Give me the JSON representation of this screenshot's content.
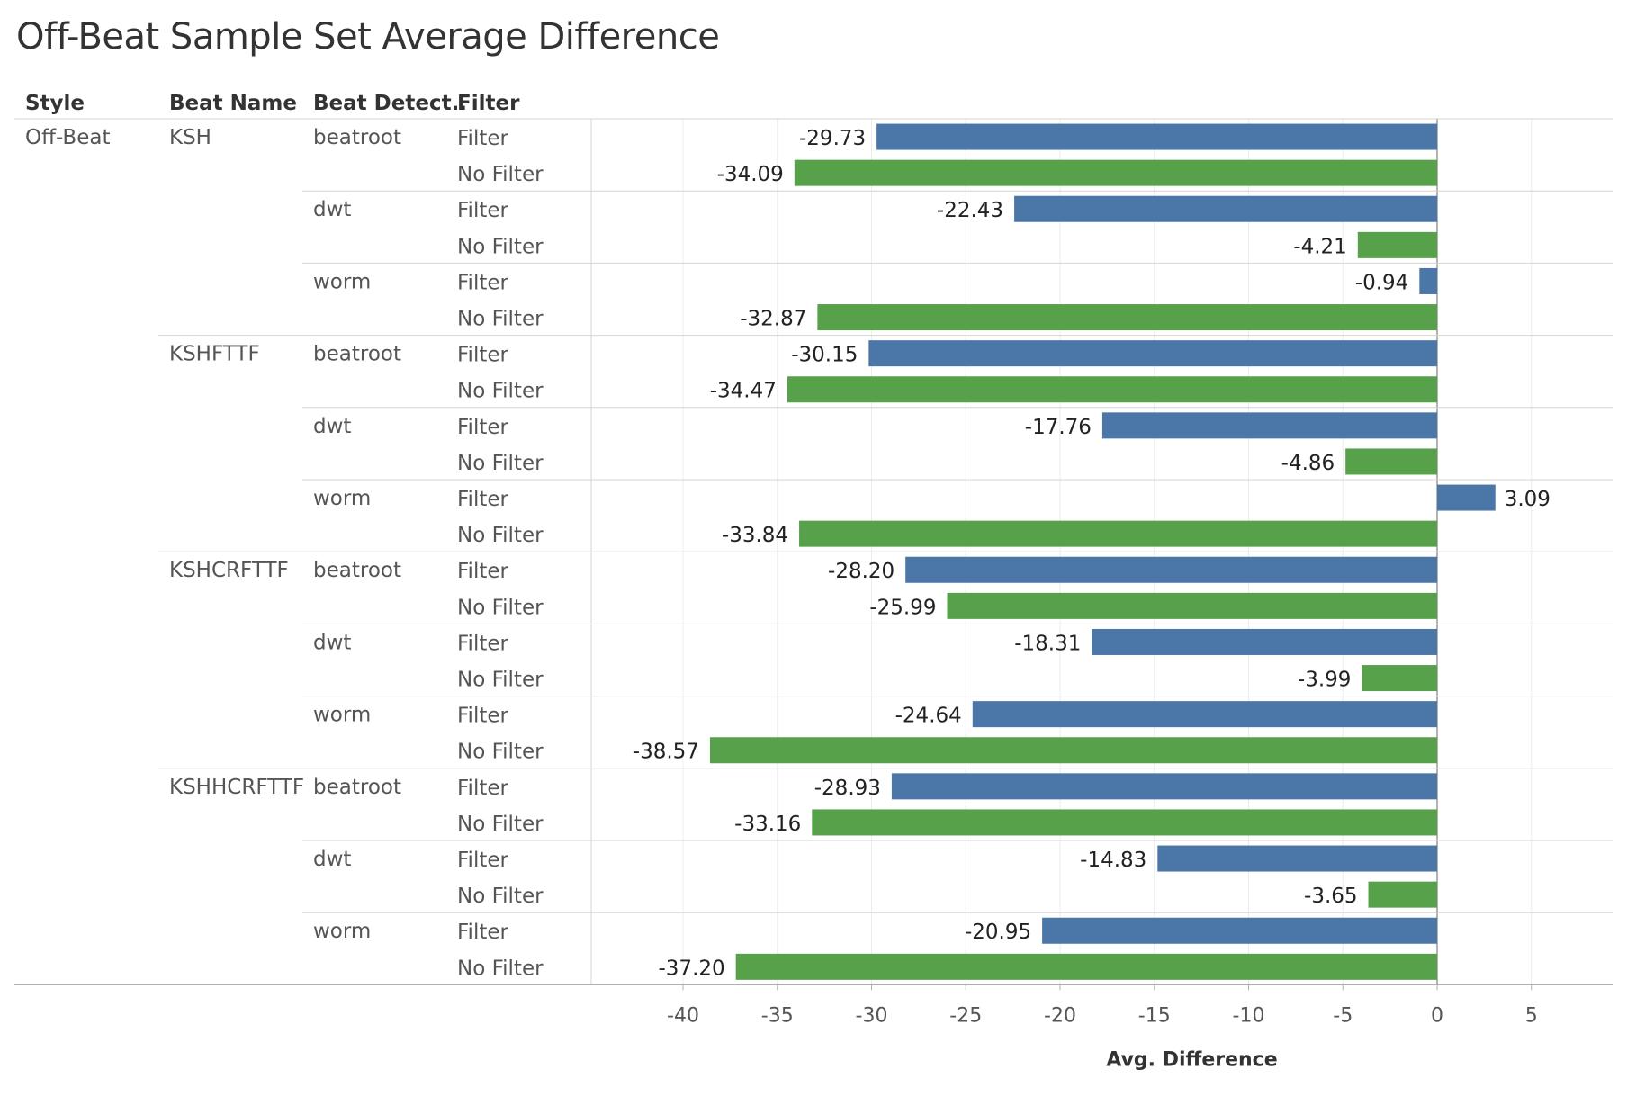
{
  "title": "Off-Beat Sample Set Average Difference",
  "columns": [
    "Style",
    "Beat Name",
    "Beat Detect..",
    "Filter"
  ],
  "colors": {
    "Filter": "#4a76a8",
    "No Filter": "#56a14a"
  },
  "chart_data": {
    "type": "bar",
    "orientation": "horizontal",
    "title": "Off-Beat Sample Set Average Difference",
    "xlabel": "Avg. Difference",
    "xlim": [
      -40,
      5
    ],
    "x_ticks": [
      -40,
      -35,
      -30,
      -25,
      -20,
      -15,
      -10,
      -5,
      0,
      5
    ],
    "grid": "vertical",
    "style": "Off-Beat",
    "rows": [
      {
        "beat": "KSH",
        "detector": "beatroot",
        "filter": "Filter",
        "value": -29.73
      },
      {
        "beat": "KSH",
        "detector": "beatroot",
        "filter": "No Filter",
        "value": -34.09
      },
      {
        "beat": "KSH",
        "detector": "dwt",
        "filter": "Filter",
        "value": -22.43
      },
      {
        "beat": "KSH",
        "detector": "dwt",
        "filter": "No Filter",
        "value": -4.21
      },
      {
        "beat": "KSH",
        "detector": "worm",
        "filter": "Filter",
        "value": -0.94
      },
      {
        "beat": "KSH",
        "detector": "worm",
        "filter": "No Filter",
        "value": -32.87
      },
      {
        "beat": "KSHFTTF",
        "detector": "beatroot",
        "filter": "Filter",
        "value": -30.15
      },
      {
        "beat": "KSHFTTF",
        "detector": "beatroot",
        "filter": "No Filter",
        "value": -34.47
      },
      {
        "beat": "KSHFTTF",
        "detector": "dwt",
        "filter": "Filter",
        "value": -17.76
      },
      {
        "beat": "KSHFTTF",
        "detector": "dwt",
        "filter": "No Filter",
        "value": -4.86
      },
      {
        "beat": "KSHFTTF",
        "detector": "worm",
        "filter": "Filter",
        "value": 3.09
      },
      {
        "beat": "KSHFTTF",
        "detector": "worm",
        "filter": "No Filter",
        "value": -33.84
      },
      {
        "beat": "KSHCRFTTF",
        "detector": "beatroot",
        "filter": "Filter",
        "value": -28.2
      },
      {
        "beat": "KSHCRFTTF",
        "detector": "beatroot",
        "filter": "No Filter",
        "value": -25.99
      },
      {
        "beat": "KSHCRFTTF",
        "detector": "dwt",
        "filter": "Filter",
        "value": -18.31
      },
      {
        "beat": "KSHCRFTTF",
        "detector": "dwt",
        "filter": "No Filter",
        "value": -3.99
      },
      {
        "beat": "KSHCRFTTF",
        "detector": "worm",
        "filter": "Filter",
        "value": -24.64
      },
      {
        "beat": "KSHCRFTTF",
        "detector": "worm",
        "filter": "No Filter",
        "value": -38.57
      },
      {
        "beat": "KSHHCRFTTF",
        "detector": "beatroot",
        "filter": "Filter",
        "value": -28.93
      },
      {
        "beat": "KSHHCRFTTF",
        "detector": "beatroot",
        "filter": "No Filter",
        "value": -33.16
      },
      {
        "beat": "KSHHCRFTTF",
        "detector": "dwt",
        "filter": "Filter",
        "value": -14.83
      },
      {
        "beat": "KSHHCRFTTF",
        "detector": "dwt",
        "filter": "No Filter",
        "value": -3.65
      },
      {
        "beat": "KSHHCRFTTF",
        "detector": "worm",
        "filter": "Filter",
        "value": -20.95
      },
      {
        "beat": "KSHHCRFTTF",
        "detector": "worm",
        "filter": "No Filter",
        "value": -37.2
      }
    ]
  }
}
